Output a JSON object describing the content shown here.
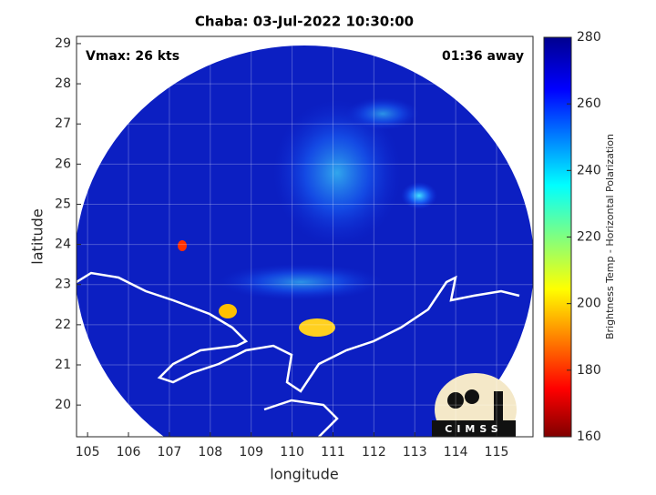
{
  "chart_data": {
    "type": "map",
    "title": "Chaba: 03-Jul-2022 10:30:00",
    "annotations": [
      "Vmax: 26 kts",
      "01:36 away"
    ],
    "xlabel": "longitude",
    "ylabel": "latitude",
    "xlim": [
      104.73,
      115.89
    ],
    "xticks": [
      105,
      106,
      107,
      108,
      109,
      110,
      111,
      112,
      113,
      114,
      115
    ],
    "ylim": [
      19.21,
      29.18
    ],
    "yticks": [
      20,
      21,
      22,
      23,
      24,
      25,
      26,
      27,
      28,
      29
    ],
    "grid": true,
    "colorbar": {
      "label": "Brightness Temp - Horizontal Polarization",
      "lim": [
        160,
        280
      ],
      "ticks": [
        160,
        180,
        200,
        220,
        240,
        260,
        280
      ]
    },
    "logo": "CIMSS"
  }
}
